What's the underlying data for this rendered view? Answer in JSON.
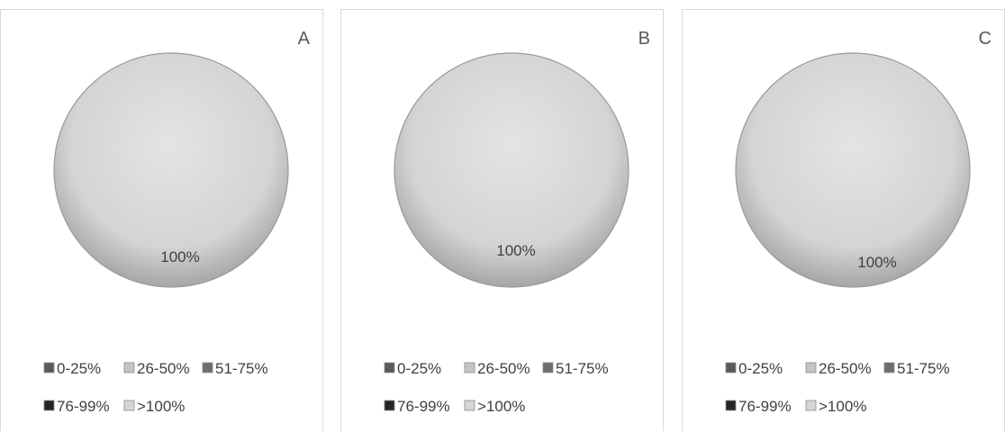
{
  "chart_data": [
    {
      "type": "pie",
      "title": "A",
      "legend_position": "bottom",
      "categories": [
        "0-25%",
        "26-50%",
        "51-75%",
        "76-99%",
        ">100%"
      ],
      "values": [
        0,
        0,
        0,
        0,
        100
      ],
      "data_labels": [
        "100%"
      ],
      "colors": [
        "#5a5a5a",
        "#c4c4c4",
        "#6e6e6e",
        "#262626",
        "#d6d6d6"
      ]
    },
    {
      "type": "pie",
      "title": "B",
      "legend_position": "bottom",
      "categories": [
        "0-25%",
        "26-50%",
        "51-75%",
        "76-99%",
        ">100%"
      ],
      "values": [
        0,
        0,
        0,
        0,
        100
      ],
      "data_labels": [
        "100%"
      ],
      "colors": [
        "#5a5a5a",
        "#c4c4c4",
        "#6e6e6e",
        "#262626",
        "#d6d6d6"
      ]
    },
    {
      "type": "pie",
      "title": "C",
      "legend_position": "bottom",
      "categories": [
        "0-25%",
        "26-50%",
        "51-75%",
        "76-99%",
        ">100%"
      ],
      "values": [
        0,
        0,
        0,
        0,
        100
      ],
      "data_labels": [
        "100%"
      ],
      "colors": [
        "#5a5a5a",
        "#c4c4c4",
        "#6e6e6e",
        "#262626",
        "#d6d6d6"
      ]
    }
  ]
}
